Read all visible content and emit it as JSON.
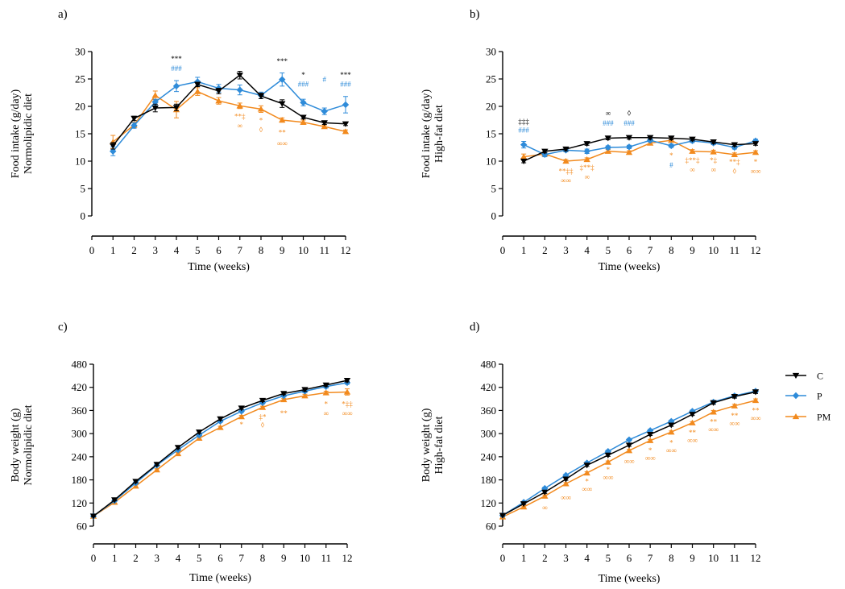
{
  "colors": {
    "C": "#000000",
    "P": "#2e8bd9",
    "PM": "#f28a1e"
  },
  "legend": [
    {
      "key": "C",
      "label": "C",
      "marker": "triangle-down"
    },
    {
      "key": "P",
      "label": "P",
      "marker": "diamond"
    },
    {
      "key": "PM",
      "label": "PM",
      "marker": "triangle-up"
    }
  ],
  "chart_data": [
    {
      "type": "line",
      "panel_label": "a)",
      "xlabel": "Time (weeks)",
      "ylabel": [
        "Food intake (g/day)",
        "Normolipidic diet"
      ],
      "xlim": [
        0,
        12
      ],
      "ylim": [
        0,
        30
      ],
      "x_ticks": [
        "0",
        "1",
        "2",
        "3",
        "4",
        "5",
        "6",
        "7",
        "8",
        "9",
        "10",
        "11",
        "12"
      ],
      "y_ticks": [
        "0",
        "5",
        "10",
        "15",
        "20",
        "25",
        "30"
      ],
      "x": [
        1,
        2,
        3,
        4,
        5,
        6,
        7,
        8,
        9,
        10,
        11,
        12
      ],
      "series": [
        {
          "name": "C",
          "values": [
            12.8,
            17.8,
            19.7,
            19.8,
            24.0,
            22.8,
            25.7,
            21.9,
            20.5,
            18.0,
            17.0,
            16.8
          ],
          "err": [
            0.6,
            0.4,
            0.7,
            0.6,
            0.4,
            0.5,
            0.7,
            0.5,
            0.7,
            0.3,
            0.3,
            0.3
          ]
        },
        {
          "name": "P",
          "values": [
            11.8,
            16.5,
            20.8,
            23.7,
            24.5,
            23.3,
            23.0,
            22.0,
            24.9,
            20.7,
            19.1,
            20.3
          ],
          "err": [
            0.8,
            0.5,
            0.5,
            1.0,
            0.8,
            0.7,
            0.9,
            0.6,
            1.2,
            0.6,
            0.6,
            1.5
          ]
        },
        {
          "name": "PM",
          "values": [
            13.5,
            16.6,
            22.0,
            19.4,
            22.7,
            21.0,
            20.1,
            19.5,
            17.5,
            17.1,
            16.3,
            15.4
          ],
          "err": [
            1.2,
            0.5,
            0.8,
            1.5,
            0.7,
            0.6,
            0.5,
            0.6,
            0.4,
            0.4,
            0.3,
            0.3
          ]
        }
      ],
      "annotations": [
        {
          "x": 4,
          "y": 28.2,
          "text": "***",
          "color": "C"
        },
        {
          "x": 4,
          "y": 26.5,
          "text": "###",
          "color": "P"
        },
        {
          "x": 7,
          "y": 17.7,
          "text": "**‡",
          "color": "PM"
        },
        {
          "x": 7,
          "y": 16.0,
          "text": "∞",
          "color": "PM"
        },
        {
          "x": 8,
          "y": 17.0,
          "text": "*",
          "color": "PM"
        },
        {
          "x": 8,
          "y": 15.3,
          "text": "◊",
          "color": "PM"
        },
        {
          "x": 9,
          "y": 27.8,
          "text": "***",
          "color": "C"
        },
        {
          "x": 9,
          "y": 14.8,
          "text": "**",
          "color": "PM"
        },
        {
          "x": 9,
          "y": 12.8,
          "text": "∞∞",
          "color": "PM"
        },
        {
          "x": 10,
          "y": 25.3,
          "text": "*",
          "color": "C"
        },
        {
          "x": 10,
          "y": 23.6,
          "text": "###",
          "color": "P"
        },
        {
          "x": 11,
          "y": 24.5,
          "text": "#",
          "color": "P"
        },
        {
          "x": 12,
          "y": 25.3,
          "text": "***",
          "color": "C"
        },
        {
          "x": 12,
          "y": 23.6,
          "text": "###",
          "color": "P"
        }
      ]
    },
    {
      "type": "line",
      "panel_label": "b)",
      "xlabel": "Time (weeks)",
      "ylabel": [
        "Food intake (g/day)",
        "High-fat diet"
      ],
      "xlim": [
        0,
        12
      ],
      "ylim": [
        0,
        30
      ],
      "x_ticks": [
        "0",
        "1",
        "2",
        "3",
        "4",
        "5",
        "6",
        "7",
        "8",
        "9",
        "10",
        "11",
        "12"
      ],
      "y_ticks": [
        "0",
        "5",
        "10",
        "15",
        "20",
        "25",
        "30"
      ],
      "x": [
        1,
        2,
        3,
        4,
        5,
        6,
        7,
        8,
        9,
        10,
        11,
        12
      ],
      "series": [
        {
          "name": "C",
          "values": [
            10.0,
            11.8,
            12.2,
            13.2,
            14.2,
            14.3,
            14.3,
            14.2,
            14.0,
            13.5,
            13.0,
            13.2
          ],
          "err": [
            0.3,
            0.3,
            0.3,
            0.3,
            0.3,
            0.3,
            0.3,
            0.3,
            0.3,
            0.3,
            0.3,
            0.3
          ]
        },
        {
          "name": "P",
          "values": [
            13.0,
            11.2,
            12.0,
            11.8,
            12.5,
            12.6,
            13.8,
            12.8,
            13.7,
            13.3,
            12.5,
            13.7
          ],
          "err": [
            0.6,
            0.4,
            0.3,
            0.4,
            0.3,
            0.3,
            0.3,
            0.3,
            0.3,
            0.3,
            0.3,
            0.3
          ]
        },
        {
          "name": "PM",
          "values": [
            10.8,
            11.3,
            10.0,
            10.3,
            11.8,
            11.6,
            13.3,
            13.8,
            11.8,
            11.7,
            11.2,
            11.6
          ],
          "err": [
            0.5,
            0.4,
            0.3,
            0.3,
            0.3,
            0.3,
            0.3,
            0.3,
            0.3,
            0.3,
            0.3,
            0.3
          ]
        }
      ],
      "annotations": [
        {
          "x": 1,
          "y": 16.8,
          "text": "‡‡‡",
          "color": "C"
        },
        {
          "x": 1,
          "y": 15.2,
          "text": "###",
          "color": "P"
        },
        {
          "x": 3,
          "y": 7.7,
          "text": "**‡‡",
          "color": "PM"
        },
        {
          "x": 3,
          "y": 6.0,
          "text": "∞∞",
          "color": "PM"
        },
        {
          "x": 4,
          "y": 8.4,
          "text": "‡**‡",
          "color": "PM"
        },
        {
          "x": 4,
          "y": 6.7,
          "text": "∞",
          "color": "PM"
        },
        {
          "x": 5,
          "y": 18.3,
          "text": "∞",
          "color": "C"
        },
        {
          "x": 5,
          "y": 16.5,
          "text": "###",
          "color": "P"
        },
        {
          "x": 6,
          "y": 18.3,
          "text": "◊",
          "color": "C"
        },
        {
          "x": 6,
          "y": 16.5,
          "text": "###",
          "color": "P"
        },
        {
          "x": 8,
          "y": 10.6,
          "text": "*",
          "color": "PM"
        },
        {
          "x": 8,
          "y": 8.8,
          "text": "#",
          "color": "P"
        },
        {
          "x": 9,
          "y": 9.7,
          "text": "‡**‡",
          "color": "PM"
        },
        {
          "x": 9,
          "y": 8.0,
          "text": "∞",
          "color": "PM"
        },
        {
          "x": 10,
          "y": 9.7,
          "text": "*‡",
          "color": "PM"
        },
        {
          "x": 10,
          "y": 8.0,
          "text": "∞",
          "color": "PM"
        },
        {
          "x": 11,
          "y": 9.4,
          "text": "**‡",
          "color": "PM"
        },
        {
          "x": 11,
          "y": 7.7,
          "text": "◊",
          "color": "PM"
        },
        {
          "x": 12,
          "y": 9.4,
          "text": "*",
          "color": "PM"
        },
        {
          "x": 12,
          "y": 7.7,
          "text": "∞∞",
          "color": "PM"
        }
      ]
    },
    {
      "type": "line",
      "panel_label": "c)",
      "xlabel": "Time (weeks)",
      "ylabel": [
        "Body weight (g)",
        "Normolipidic diet"
      ],
      "xlim": [
        0,
        12
      ],
      "ylim": [
        60,
        480
      ],
      "x_ticks": [
        "0",
        "1",
        "2",
        "3",
        "4",
        "5",
        "6",
        "7",
        "8",
        "9",
        "10",
        "11",
        "12"
      ],
      "y_ticks": [
        "60",
        "120",
        "180",
        "240",
        "300",
        "360",
        "420",
        "480"
      ],
      "x": [
        0,
        1,
        2,
        3,
        4,
        5,
        6,
        7,
        8,
        9,
        10,
        11,
        12
      ],
      "series": [
        {
          "name": "C",
          "values": [
            86,
            128,
            176,
            220,
            264,
            304,
            338,
            366,
            386,
            404,
            414,
            426,
            438
          ],
          "err": [
            2,
            2,
            3,
            3,
            3,
            3,
            3,
            3,
            3,
            3,
            4,
            4,
            4
          ]
        },
        {
          "name": "P",
          "values": [
            86,
            126,
            172,
            218,
            258,
            296,
            332,
            358,
            380,
            398,
            410,
            422,
            432
          ],
          "err": [
            2,
            2,
            3,
            3,
            3,
            3,
            3,
            3,
            3,
            3,
            4,
            4,
            4
          ]
        },
        {
          "name": "PM",
          "values": [
            86,
            122,
            164,
            206,
            248,
            288,
            316,
            344,
            368,
            388,
            398,
            406,
            408
          ],
          "err": [
            2,
            2,
            3,
            3,
            3,
            3,
            3,
            3,
            3,
            3,
            4,
            4,
            8
          ]
        }
      ],
      "annotations": [
        {
          "x": 7,
          "y": 317,
          "text": "*",
          "color": "PM"
        },
        {
          "x": 8,
          "y": 337,
          "text": "‡*",
          "color": "PM"
        },
        {
          "x": 8,
          "y": 316,
          "text": "◊",
          "color": "PM"
        },
        {
          "x": 9,
          "y": 346,
          "text": "**",
          "color": "PM"
        },
        {
          "x": 11,
          "y": 370,
          "text": "*",
          "color": "PM"
        },
        {
          "x": 11,
          "y": 346,
          "text": "∞",
          "color": "PM"
        },
        {
          "x": 12,
          "y": 370,
          "text": "*‡‡",
          "color": "PM"
        },
        {
          "x": 12,
          "y": 346,
          "text": "∞∞",
          "color": "PM"
        }
      ]
    },
    {
      "type": "line",
      "panel_label": "d)",
      "xlabel": "Time (weeks)",
      "ylabel": [
        "Body weight (g)",
        "High-fat diet"
      ],
      "xlim": [
        0,
        12
      ],
      "ylim": [
        60,
        480
      ],
      "x_ticks": [
        "0",
        "1",
        "2",
        "3",
        "4",
        "5",
        "6",
        "7",
        "8",
        "9",
        "10",
        "11",
        "12"
      ],
      "y_ticks": [
        "60",
        "120",
        "180",
        "240",
        "300",
        "360",
        "420",
        "480"
      ],
      "x": [
        0,
        1,
        2,
        3,
        4,
        5,
        6,
        7,
        8,
        9,
        10,
        11,
        12
      ],
      "series": [
        {
          "name": "C",
          "values": [
            88,
            118,
            148,
            182,
            218,
            244,
            270,
            298,
            322,
            350,
            380,
            396,
            408
          ],
          "err": [
            2,
            2,
            3,
            3,
            3,
            3,
            3,
            3,
            3,
            3,
            4,
            4,
            4
          ]
        },
        {
          "name": "P",
          "values": [
            88,
            122,
            158,
            192,
            224,
            254,
            284,
            308,
            332,
            358,
            382,
            398,
            410
          ],
          "err": [
            2,
            2,
            3,
            3,
            3,
            3,
            3,
            3,
            3,
            3,
            4,
            4,
            4
          ]
        },
        {
          "name": "PM",
          "values": [
            84,
            110,
            138,
            170,
            198,
            226,
            256,
            282,
            304,
            328,
            356,
            372,
            386
          ],
          "err": [
            2,
            2,
            3,
            3,
            3,
            3,
            3,
            3,
            3,
            3,
            4,
            4,
            4
          ]
        }
      ],
      "annotations": [
        {
          "x": 2,
          "y": 102,
          "text": "∞",
          "color": "PM"
        },
        {
          "x": 3,
          "y": 128,
          "text": "∞∞",
          "color": "PM"
        },
        {
          "x": 4,
          "y": 170,
          "text": "*",
          "color": "PM"
        },
        {
          "x": 4,
          "y": 150,
          "text": "∞∞",
          "color": "PM"
        },
        {
          "x": 5,
          "y": 200,
          "text": "*",
          "color": "PM"
        },
        {
          "x": 5,
          "y": 180,
          "text": "∞∞",
          "color": "PM"
        },
        {
          "x": 6,
          "y": 222,
          "text": "∞∞",
          "color": "PM"
        },
        {
          "x": 7,
          "y": 250,
          "text": "*",
          "color": "PM"
        },
        {
          "x": 7,
          "y": 230,
          "text": "∞∞",
          "color": "PM"
        },
        {
          "x": 8,
          "y": 270,
          "text": "*",
          "color": "PM"
        },
        {
          "x": 8,
          "y": 250,
          "text": "∞∞",
          "color": "PM"
        },
        {
          "x": 9,
          "y": 296,
          "text": "**",
          "color": "PM"
        },
        {
          "x": 9,
          "y": 276,
          "text": "∞∞",
          "color": "PM"
        },
        {
          "x": 10,
          "y": 324,
          "text": "**",
          "color": "PM"
        },
        {
          "x": 10,
          "y": 304,
          "text": "∞∞",
          "color": "PM"
        },
        {
          "x": 11,
          "y": 340,
          "text": "**",
          "color": "PM"
        },
        {
          "x": 11,
          "y": 320,
          "text": "∞∞",
          "color": "PM"
        },
        {
          "x": 12,
          "y": 354,
          "text": "**",
          "color": "PM"
        },
        {
          "x": 12,
          "y": 334,
          "text": "∞∞",
          "color": "PM"
        }
      ]
    }
  ]
}
